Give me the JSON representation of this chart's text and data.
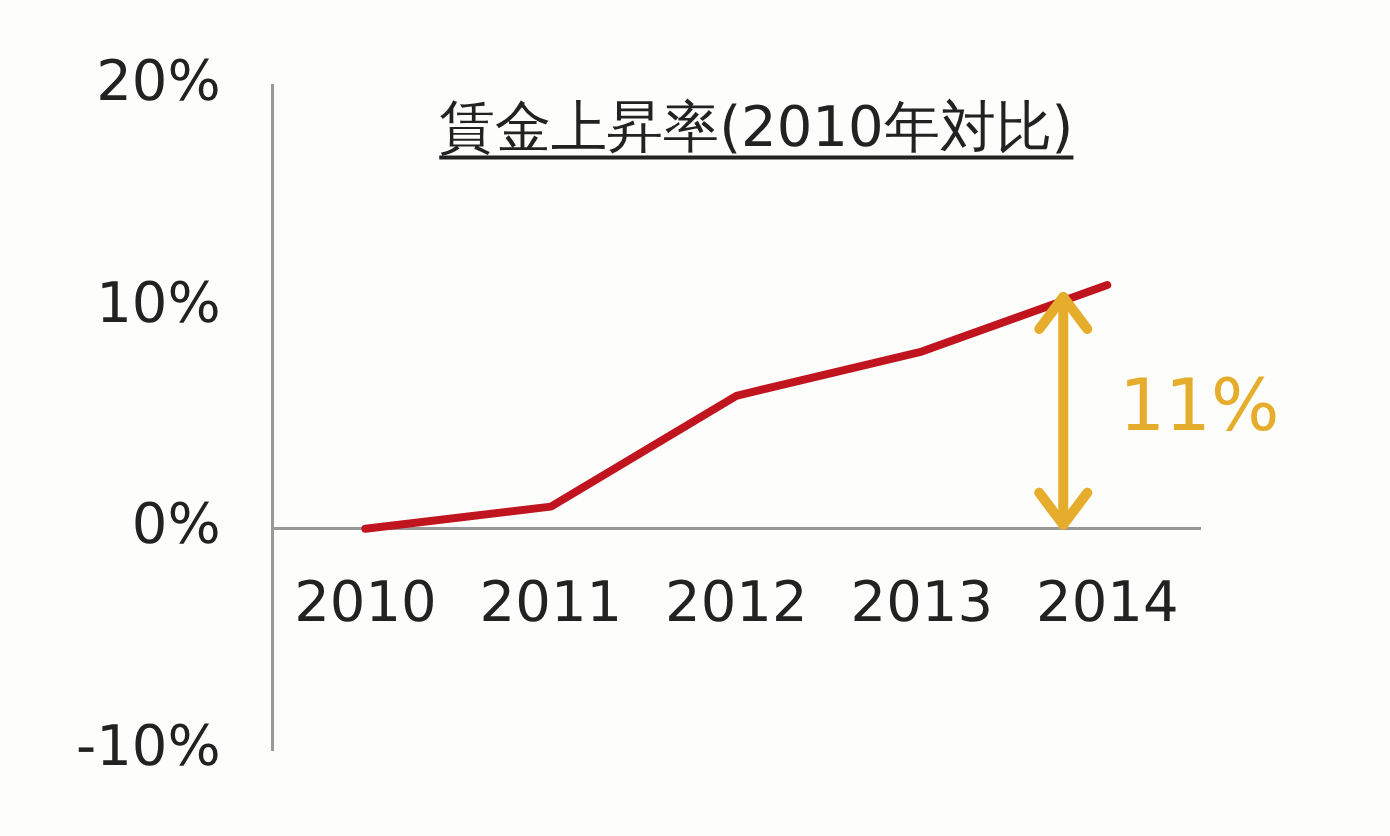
{
  "chart_data": {
    "type": "line",
    "title": "賃金上昇率(2010年対比)",
    "categories": [
      "2010",
      "2011",
      "2012",
      "2013",
      "2014"
    ],
    "series": [
      {
        "color": "#c0141e",
        "values": [
          0,
          1,
          6,
          8,
          11
        ]
      }
    ],
    "ylim": [
      -10,
      20
    ],
    "yticks": [
      {
        "value": -10,
        "label": "-10%"
      },
      {
        "value": 0,
        "label": "0%"
      },
      {
        "value": 10,
        "label": "10%"
      },
      {
        "value": 20,
        "label": "20%"
      }
    ],
    "annotations": [
      {
        "text": "11%",
        "x": "2014",
        "y": 11
      }
    ],
    "grid": false,
    "legend": false,
    "marker": "none",
    "line_style": "solid"
  }
}
